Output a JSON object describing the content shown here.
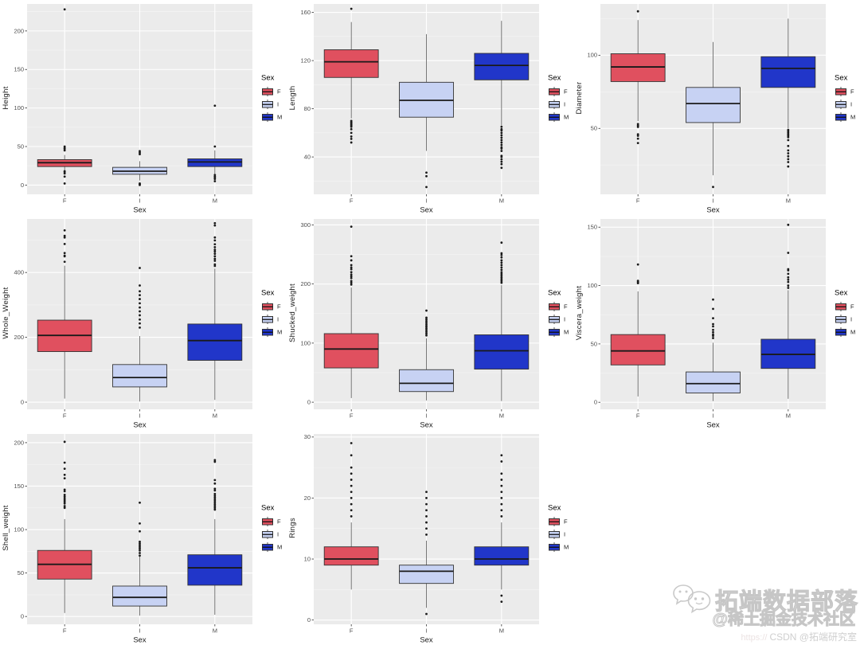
{
  "legend": {
    "title": "Sex",
    "entries": [
      {
        "label": "F",
        "color": "#E0505F"
      },
      {
        "label": "I",
        "color": "#C7D2F3"
      },
      {
        "label": "M",
        "color": "#2136C9"
      }
    ]
  },
  "style_colors": {
    "panel_background": "#EBEBEB",
    "grid_major": "#FFFFFF",
    "grid_minor": "#F5F5F5",
    "box_border": "#333333",
    "median_line": "#1a1a1a",
    "whisker": "#555555",
    "outlier": "#1a1a1a"
  },
  "watermark": {
    "brand": "拓端数据部落",
    "community": "@稀土掘金技术社区",
    "url_fragment": "https://",
    "csdn": "CSDN @拓端研究室"
  },
  "chart_data": [
    {
      "type": "boxplot",
      "ylabel": "Height",
      "xlabel": "Sex",
      "categories": [
        "F",
        "I",
        "M"
      ],
      "yticks": [
        0,
        50,
        100,
        150,
        200
      ],
      "ylim": [
        -12,
        235
      ],
      "series": [
        {
          "label": "F",
          "whisker_low": 19,
          "q1": 24,
          "median": 29,
          "q3": 33,
          "whisker_high": 39,
          "outliers": [
            2,
            11,
            15,
            17,
            18,
            45,
            47,
            48,
            50,
            228
          ]
        },
        {
          "label": "I",
          "whisker_low": 6,
          "q1": 14,
          "median": 18,
          "q3": 23,
          "whisker_high": 31,
          "outliers": [
            0,
            1,
            2,
            40,
            42,
            44
          ]
        },
        {
          "label": "M",
          "whisker_low": 13,
          "q1": 24,
          "median": 30,
          "q3": 34,
          "whisker_high": 45,
          "outliers": [
            5,
            8,
            10,
            11,
            13,
            50,
            103
          ]
        }
      ]
    },
    {
      "type": "boxplot",
      "ylabel": "Length",
      "xlabel": "Sex",
      "categories": [
        "F",
        "I",
        "M"
      ],
      "yticks": [
        40,
        80,
        120,
        160
      ],
      "ylim": [
        9,
        167
      ],
      "series": [
        {
          "label": "F",
          "whisker_low": 72,
          "q1": 106,
          "median": 119,
          "q3": 129,
          "whisker_high": 152,
          "outliers": [
            52,
            55,
            57,
            60,
            63,
            65,
            66,
            67,
            68,
            69,
            70,
            163
          ]
        },
        {
          "label": "I",
          "whisker_low": 45,
          "q1": 73,
          "median": 87,
          "q3": 102,
          "whisker_high": 142,
          "outliers": [
            15,
            24,
            27
          ]
        },
        {
          "label": "M",
          "whisker_low": 66,
          "q1": 104,
          "median": 116,
          "q3": 126,
          "whisker_high": 153,
          "outliers": [
            31,
            34,
            36,
            38,
            40,
            41,
            45,
            47,
            48,
            50,
            52,
            54,
            56,
            58,
            60,
            62,
            63,
            65
          ]
        }
      ]
    },
    {
      "type": "boxplot",
      "ylabel": "Diameter",
      "xlabel": "Sex",
      "categories": [
        "F",
        "I",
        "M"
      ],
      "yticks": [
        50,
        100
      ],
      "ylim": [
        5,
        135
      ],
      "series": [
        {
          "label": "F",
          "whisker_low": 55,
          "q1": 82,
          "median": 92,
          "q3": 101,
          "whisker_high": 124,
          "outliers": [
            40,
            43,
            45,
            46,
            51,
            52,
            53,
            130
          ]
        },
        {
          "label": "I",
          "whisker_low": 18,
          "q1": 54,
          "median": 67,
          "q3": 78,
          "whisker_high": 109,
          "outliers": [
            10
          ]
        },
        {
          "label": "M",
          "whisker_low": 50,
          "q1": 78,
          "median": 91,
          "q3": 99,
          "whisker_high": 125,
          "outliers": [
            24,
            27,
            29,
            31,
            33,
            35,
            38,
            42,
            44,
            45,
            46,
            47,
            48,
            49
          ]
        }
      ]
    },
    {
      "type": "boxplot",
      "ylabel": "Whole_Weight",
      "xlabel": "Sex",
      "categories": [
        "F",
        "I",
        "M"
      ],
      "yticks": [
        0,
        200,
        400
      ],
      "ylim": [
        -22,
        565
      ],
      "series": [
        {
          "label": "F",
          "whisker_low": 11,
          "q1": 156,
          "median": 206,
          "q3": 253,
          "whisker_high": 421,
          "outliers": [
            433,
            450,
            452,
            460,
            488,
            508,
            513,
            530
          ]
        },
        {
          "label": "I",
          "whisker_low": 2,
          "q1": 47,
          "median": 76,
          "q3": 116,
          "whisker_high": 204,
          "outliers": [
            230,
            243,
            255,
            268,
            280,
            292,
            305,
            318,
            330,
            342,
            360,
            414
          ]
        },
        {
          "label": "M",
          "whisker_low": 7,
          "q1": 129,
          "median": 190,
          "q3": 241,
          "whisker_high": 412,
          "outliers": [
            420,
            425,
            436,
            442,
            450,
            458,
            465,
            470,
            478,
            487,
            499,
            508,
            545,
            552
          ]
        }
      ]
    },
    {
      "type": "boxplot",
      "ylabel": "Shucked_weight",
      "xlabel": "Sex",
      "categories": [
        "F",
        "I",
        "M"
      ],
      "yticks": [
        0,
        100,
        200,
        300
      ],
      "ylim": [
        -12,
        310
      ],
      "series": [
        {
          "label": "F",
          "whisker_low": 7,
          "q1": 58,
          "median": 90,
          "q3": 116,
          "whisker_high": 194,
          "outliers": [
            199,
            202,
            205,
            210,
            213,
            216,
            220,
            225,
            228,
            232,
            240,
            247,
            297
          ]
        },
        {
          "label": "I",
          "whisker_low": 3,
          "q1": 18,
          "median": 32,
          "q3": 55,
          "whisker_high": 108,
          "outliers": [
            113,
            116,
            119,
            122,
            125,
            128,
            131,
            134,
            137,
            140,
            143,
            155
          ]
        },
        {
          "label": "M",
          "whisker_low": 2,
          "q1": 56,
          "median": 87,
          "q3": 114,
          "whisker_high": 198,
          "outliers": [
            202,
            205,
            208,
            211,
            214,
            217,
            220,
            224,
            228,
            232,
            236,
            240,
            245,
            249,
            252,
            270
          ]
        }
      ]
    },
    {
      "type": "boxplot",
      "ylabel": "Viscera_weight",
      "xlabel": "Sex",
      "categories": [
        "F",
        "I",
        "M"
      ],
      "yticks": [
        0,
        50,
        100,
        150
      ],
      "ylim": [
        -6,
        157
      ],
      "series": [
        {
          "label": "F",
          "whisker_low": 5,
          "q1": 32,
          "median": 44,
          "q3": 58,
          "whisker_high": 95,
          "outliers": [
            102,
            103,
            104,
            118
          ]
        },
        {
          "label": "I",
          "whisker_low": 1,
          "q1": 8,
          "median": 16,
          "q3": 26,
          "whisker_high": 51,
          "outliers": [
            55,
            57,
            58,
            60,
            62,
            65,
            67,
            72,
            80,
            88
          ]
        },
        {
          "label": "M",
          "whisker_low": 3,
          "q1": 29,
          "median": 41,
          "q3": 54,
          "whisker_high": 96,
          "outliers": [
            98,
            100,
            103,
            105,
            107,
            110,
            113,
            114,
            128,
            152
          ]
        }
      ]
    },
    {
      "type": "boxplot",
      "ylabel": "Shell_weight",
      "xlabel": "Sex",
      "categories": [
        "F",
        "I",
        "M"
      ],
      "yticks": [
        0,
        50,
        100,
        150,
        200
      ],
      "ylim": [
        -9,
        210
      ],
      "series": [
        {
          "label": "F",
          "whisker_low": 4,
          "q1": 43,
          "median": 60,
          "q3": 76,
          "whisker_high": 112,
          "outliers": [
            125,
            127,
            130,
            132,
            134,
            136,
            138,
            140,
            144,
            146,
            159,
            163,
            170,
            177,
            201
          ]
        },
        {
          "label": "I",
          "whisker_low": 1,
          "q1": 12,
          "median": 22,
          "q3": 35,
          "whisker_high": 69,
          "outliers": [
            70,
            73,
            76,
            78,
            80,
            82,
            84,
            86,
            98,
            107,
            131
          ]
        },
        {
          "label": "M",
          "whisker_low": 2,
          "q1": 36,
          "median": 56,
          "q3": 71,
          "whisker_high": 112,
          "outliers": [
            123,
            125,
            127,
            129,
            131,
            133,
            135,
            137,
            139,
            141,
            145,
            147,
            153,
            157,
            178,
            180
          ]
        }
      ]
    },
    {
      "type": "boxplot",
      "ylabel": "Rings",
      "xlabel": "Sex",
      "categories": [
        "F",
        "I",
        "M"
      ],
      "yticks": [
        0,
        10,
        20,
        30
      ],
      "ylim": [
        -0.7,
        30.5
      ],
      "series": [
        {
          "label": "F",
          "whisker_low": 5,
          "q1": 9,
          "median": 10,
          "q3": 12,
          "whisker_high": 16,
          "outliers": [
            17,
            18,
            19,
            20,
            21,
            22,
            23,
            24,
            25,
            27,
            29
          ]
        },
        {
          "label": "I",
          "whisker_low": 2,
          "q1": 6,
          "median": 8,
          "q3": 9,
          "whisker_high": 13,
          "outliers": [
            1,
            14,
            15,
            16,
            17,
            18,
            19,
            20,
            21
          ]
        },
        {
          "label": "M",
          "whisker_low": 5,
          "q1": 9,
          "median": 10,
          "q3": 12,
          "whisker_high": 16,
          "outliers": [
            3,
            4,
            17,
            18,
            19,
            20,
            21,
            22,
            23,
            24,
            26,
            27
          ]
        }
      ]
    }
  ]
}
